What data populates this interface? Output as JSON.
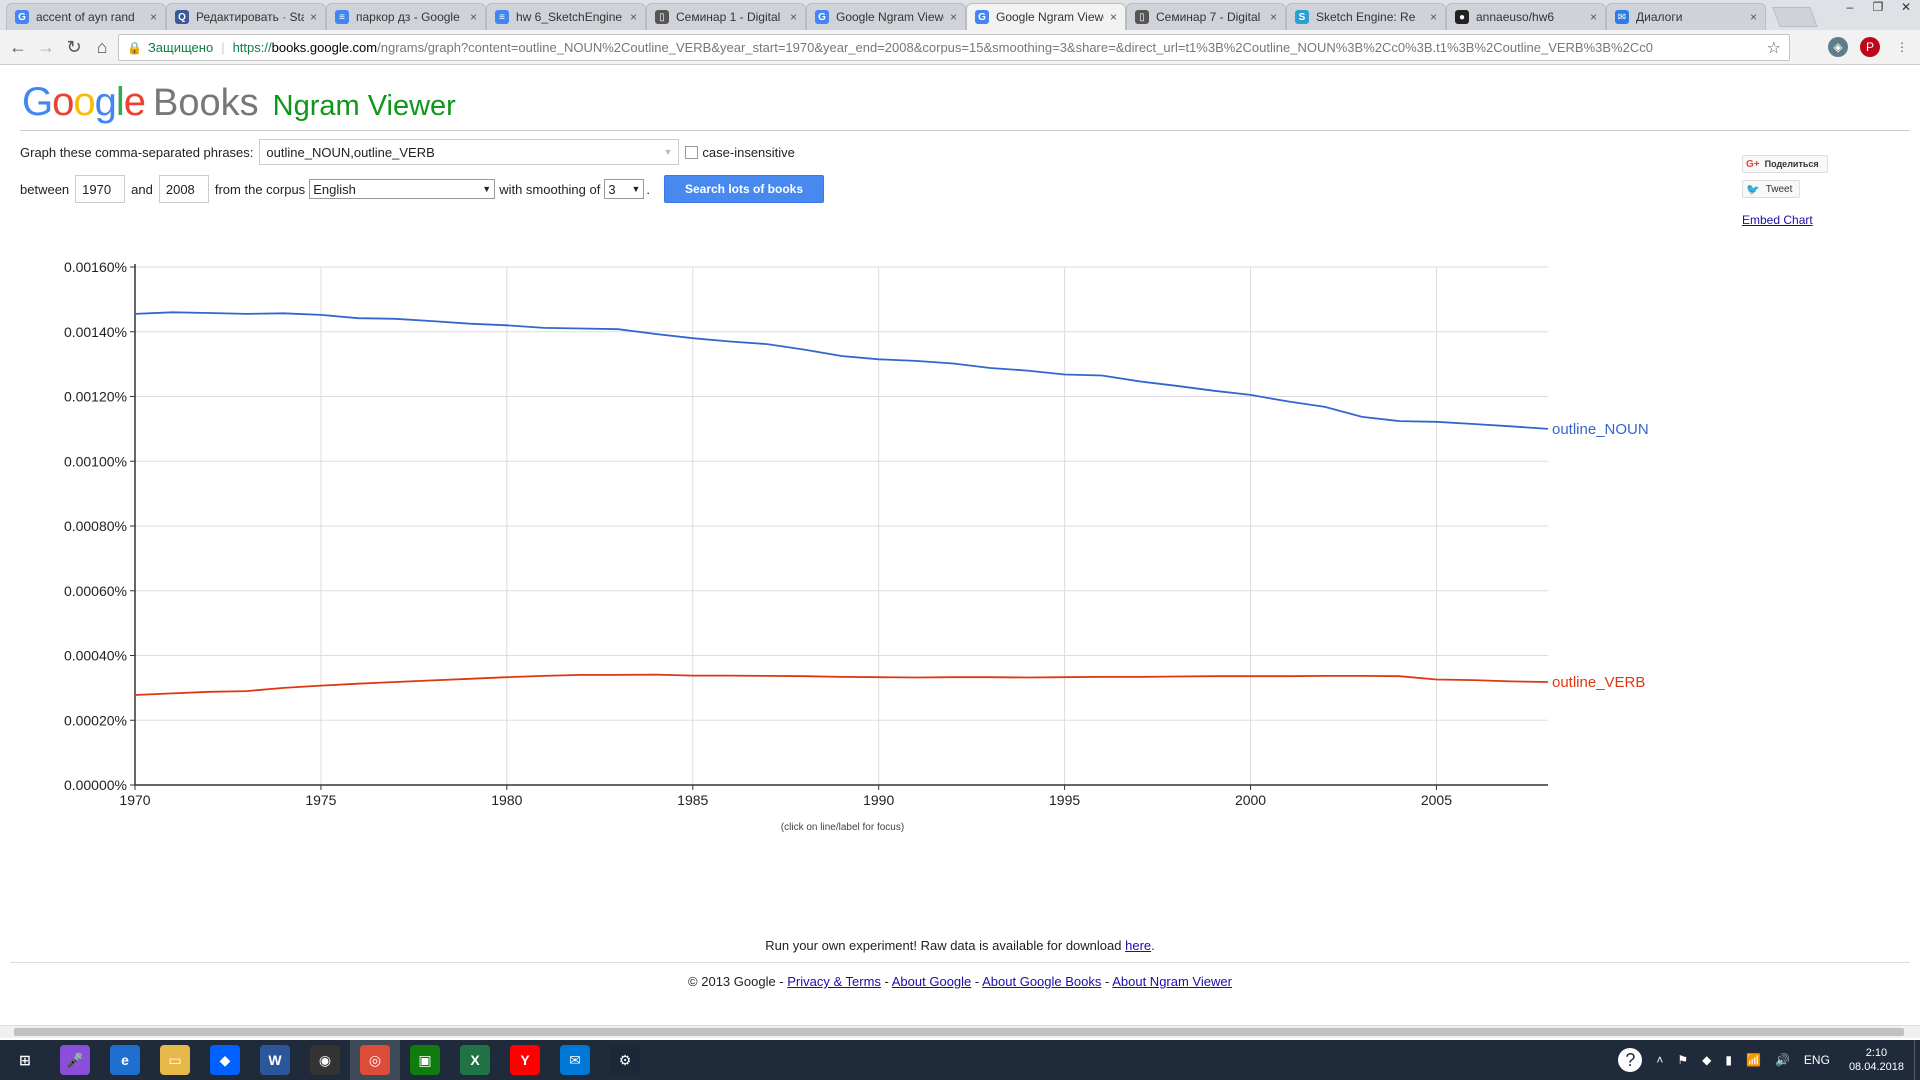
{
  "browser": {
    "tabs": [
      {
        "title": "accent of ayn rand",
        "fav_color": "#4285f4",
        "fav_glyph": "G",
        "active": false
      },
      {
        "title": "Редактировать · Stack",
        "fav_color": "#3b5998",
        "fav_glyph": "Q",
        "active": false
      },
      {
        "title": "паркор дз - Google",
        "fav_color": "#4285f4",
        "fav_glyph": "≡",
        "active": false
      },
      {
        "title": "hw 6_SketchEngine",
        "fav_color": "#4285f4",
        "fav_glyph": "≡",
        "active": false
      },
      {
        "title": "Семинар 1 - Digital",
        "fav_color": "#555555",
        "fav_glyph": "▯",
        "active": false
      },
      {
        "title": "Google Ngram Viewer",
        "fav_color": "#4285f4",
        "fav_glyph": "G",
        "active": false
      },
      {
        "title": "Google Ngram Viewer",
        "fav_color": "#4285f4",
        "fav_glyph": "G",
        "active": true
      },
      {
        "title": "Семинар 7 - Digital",
        "fav_color": "#555555",
        "fav_glyph": "▯",
        "active": false
      },
      {
        "title": "Sketch Engine: Re",
        "fav_color": "#2a9fd6",
        "fav_glyph": "S",
        "active": false
      },
      {
        "title": "annaeuso/hw6",
        "fav_color": "#222222",
        "fav_glyph": "●",
        "active": false
      },
      {
        "title": "Диалоги",
        "fav_color": "#2b7de9",
        "fav_glyph": "✉",
        "active": false
      }
    ],
    "tab_close": "×",
    "window_controls": [
      "–",
      "❐",
      "✕"
    ],
    "nav": {
      "back": "←",
      "forward": "→",
      "reload": "↻",
      "home": "⌂"
    },
    "secure_label": "Защищено",
    "url_https": "https://",
    "url_host": "books.google.com",
    "url_rest": "/ngrams/graph?content=outline_NOUN%2Coutline_VERB&year_start=1970&year_end=2008&corpus=15&smoothing=3&share=&direct_url=t1%3B%2Coutline_NOUN%3B%2Cc0%3B.t1%3B%2Coutline_VERB%3B%2Cc0",
    "star": "☆"
  },
  "header": {
    "google": "Google",
    "books": "Books",
    "ngram": "Ngram Viewer"
  },
  "form": {
    "phrases_label": "Graph these comma-separated phrases:",
    "phrases_value": "outline_NOUN,outline_VERB",
    "case_insensitive_label": "case-insensitive",
    "between_label": "between",
    "year_start": "1970",
    "and_label": "and",
    "year_end": "2008",
    "corpus_label": "from the corpus",
    "corpus_value": "English",
    "smoothing_label": "with smoothing of",
    "smoothing_value": "3",
    "period": ".",
    "search_button": "Search lots of books"
  },
  "share": {
    "gplus_label": "Поделиться",
    "tweet_label": "Tweet",
    "embed_label": "Embed Chart"
  },
  "chart_data": {
    "type": "line",
    "x_ticks": [
      1970,
      1975,
      1980,
      1985,
      1990,
      1995,
      2000,
      2005
    ],
    "y_ticks": [
      "0.00000%",
      "0.00020%",
      "0.00040%",
      "0.00060%",
      "0.00080%",
      "0.00100%",
      "0.00120%",
      "0.00140%",
      "0.00160%"
    ],
    "xlim": [
      1970,
      2008
    ],
    "ylim": [
      0,
      0.0016
    ],
    "grid": true,
    "series": [
      {
        "name": "outline_NOUN",
        "color": "#3366cc",
        "x": [
          1970,
          1971,
          1972,
          1973,
          1974,
          1975,
          1976,
          1977,
          1978,
          1979,
          1980,
          1981,
          1982,
          1983,
          1984,
          1985,
          1986,
          1987,
          1988,
          1989,
          1990,
          1991,
          1992,
          1993,
          1994,
          1995,
          1996,
          1997,
          1998,
          1999,
          2000,
          2001,
          2002,
          2003,
          2004,
          2005,
          2006,
          2007,
          2008
        ],
        "values": [
          0.001455,
          0.00146,
          0.001458,
          0.001455,
          0.001457,
          0.001452,
          0.001442,
          0.00144,
          0.001433,
          0.001425,
          0.00142,
          0.001412,
          0.00141,
          0.001408,
          0.001393,
          0.00138,
          0.00137,
          0.001362,
          0.001345,
          0.001325,
          0.001315,
          0.00131,
          0.001302,
          0.001288,
          0.00128,
          0.001268,
          0.001265,
          0.001247,
          0.001233,
          0.001218,
          0.001205,
          0.001185,
          0.001168,
          0.001137,
          0.001124,
          0.001122,
          0.001115,
          0.001108,
          0.0011
        ]
      },
      {
        "name": "outline_VERB",
        "color": "#dc3912",
        "x": [
          1970,
          1971,
          1972,
          1973,
          1974,
          1975,
          1976,
          1977,
          1978,
          1979,
          1980,
          1981,
          1982,
          1983,
          1984,
          1985,
          1986,
          1987,
          1988,
          1989,
          1990,
          1991,
          1992,
          1993,
          1994,
          1995,
          1996,
          1997,
          1998,
          1999,
          2000,
          2001,
          2002,
          2003,
          2004,
          2005,
          2006,
          2007,
          2008
        ],
        "values": [
          0.000278,
          0.000283,
          0.000288,
          0.00029,
          0.0003,
          0.000307,
          0.000313,
          0.000318,
          0.000323,
          0.000328,
          0.000333,
          0.000337,
          0.00034,
          0.00034,
          0.000341,
          0.000338,
          0.000338,
          0.000337,
          0.000336,
          0.000334,
          0.000333,
          0.000332,
          0.000333,
          0.000333,
          0.000332,
          0.000333,
          0.000334,
          0.000334,
          0.000335,
          0.000336,
          0.000336,
          0.000336,
          0.000337,
          0.000337,
          0.000336,
          0.000326,
          0.000324,
          0.00032,
          0.000318
        ]
      }
    ]
  },
  "chart_hint": "(click on line/label for focus)",
  "footer": {
    "experiment_text": "Run your own experiment! Raw data is available for download ",
    "here": "here",
    "period": ".",
    "copyright": "© 2013 Google - ",
    "privacy": "Privacy & Terms",
    "sep": " - ",
    "about_google": "About Google",
    "about_books": "About Google Books",
    "about_ngram": "About Ngram Viewer"
  },
  "taskbar": {
    "icons": [
      {
        "name": "start-icon",
        "color": "#1f2b3a",
        "glyph": "⊞"
      },
      {
        "name": "cortana-icon",
        "color": "#8a4fd8",
        "glyph": "🎤"
      },
      {
        "name": "ie-icon",
        "color": "#1e6fd0",
        "glyph": "e"
      },
      {
        "name": "explorer-icon",
        "color": "#e6b84a",
        "glyph": "▭"
      },
      {
        "name": "dropbox-icon",
        "color": "#0061fe",
        "glyph": "◆"
      },
      {
        "name": "word-icon",
        "color": "#2b579a",
        "glyph": "W"
      },
      {
        "name": "media-icon",
        "color": "#333333",
        "glyph": "◉"
      },
      {
        "name": "chrome-icon",
        "color": "#dd4b39",
        "glyph": "◎"
      },
      {
        "name": "store-icon",
        "color": "#107c10",
        "glyph": "▣"
      },
      {
        "name": "excel-icon",
        "color": "#217346",
        "glyph": "X"
      },
      {
        "name": "yandex-icon",
        "color": "#ff0000",
        "glyph": "Y"
      },
      {
        "name": "mail-icon",
        "color": "#0078d7",
        "glyph": "✉"
      },
      {
        "name": "steam-icon",
        "color": "#1b2838",
        "glyph": "⚙"
      }
    ],
    "lang": "ENG",
    "time": "2:10",
    "date": "08.04.2018"
  }
}
